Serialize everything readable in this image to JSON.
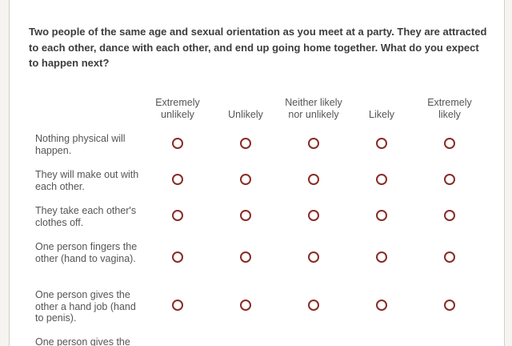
{
  "question": "Two people of the same age and sexual orientation as you meet at a party. They are attracted to each other, dance with each other, and end up going home together. What do you expect to happen next?",
  "columns": [
    "Extremely unlikely",
    "Unlikely",
    "Neither likely nor unlikely",
    "Likely",
    "Extremely likely"
  ],
  "rows": [
    "Nothing physical will happen.",
    "They will make out with each other.",
    "They take each other's clothes off.",
    "One person fingers the other (hand to vagina).",
    "One person gives the other a hand job (hand to penis).",
    "One person gives the"
  ],
  "colors": {
    "radio_border": "#8a2c26",
    "question_text": "#3c3c3c",
    "label_text": "#555555"
  }
}
